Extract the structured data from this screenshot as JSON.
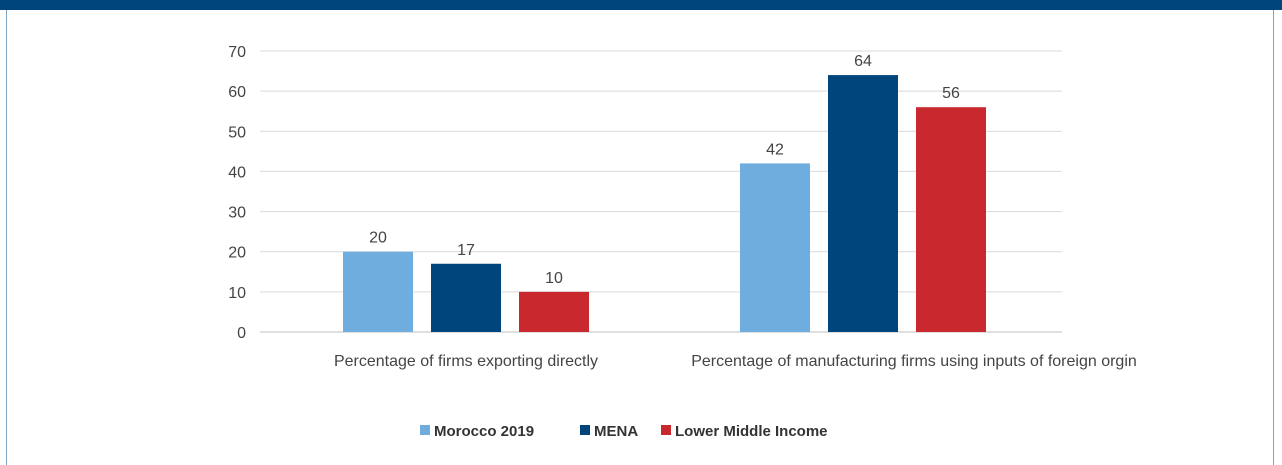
{
  "header": {
    "bar_color": "#00457c",
    "frame_color": "#7fa3c2"
  },
  "chart_data": {
    "type": "bar",
    "categories": [
      "Percentage of firms exporting directly",
      "Percentage of manufacturing firms using inputs of foreign orgin"
    ],
    "series": [
      {
        "name": "Morocco 2019",
        "values": [
          20,
          42
        ],
        "color": "#6fadde",
        "labels": [
          "20",
          "42"
        ]
      },
      {
        "name": "MENA",
        "values": [
          17,
          64
        ],
        "color": "#00457c",
        "labels": [
          "17",
          "64"
        ]
      },
      {
        "name": "Lower Middle Income",
        "values": [
          10,
          56
        ],
        "color": "#c8282e",
        "labels": [
          "10",
          "56"
        ]
      }
    ],
    "ylim": [
      0,
      70
    ],
    "yticks": [
      "0",
      "10",
      "20",
      "30",
      "40",
      "50",
      "60",
      "70"
    ],
    "grid": true,
    "legend_position": "bottom-center"
  }
}
